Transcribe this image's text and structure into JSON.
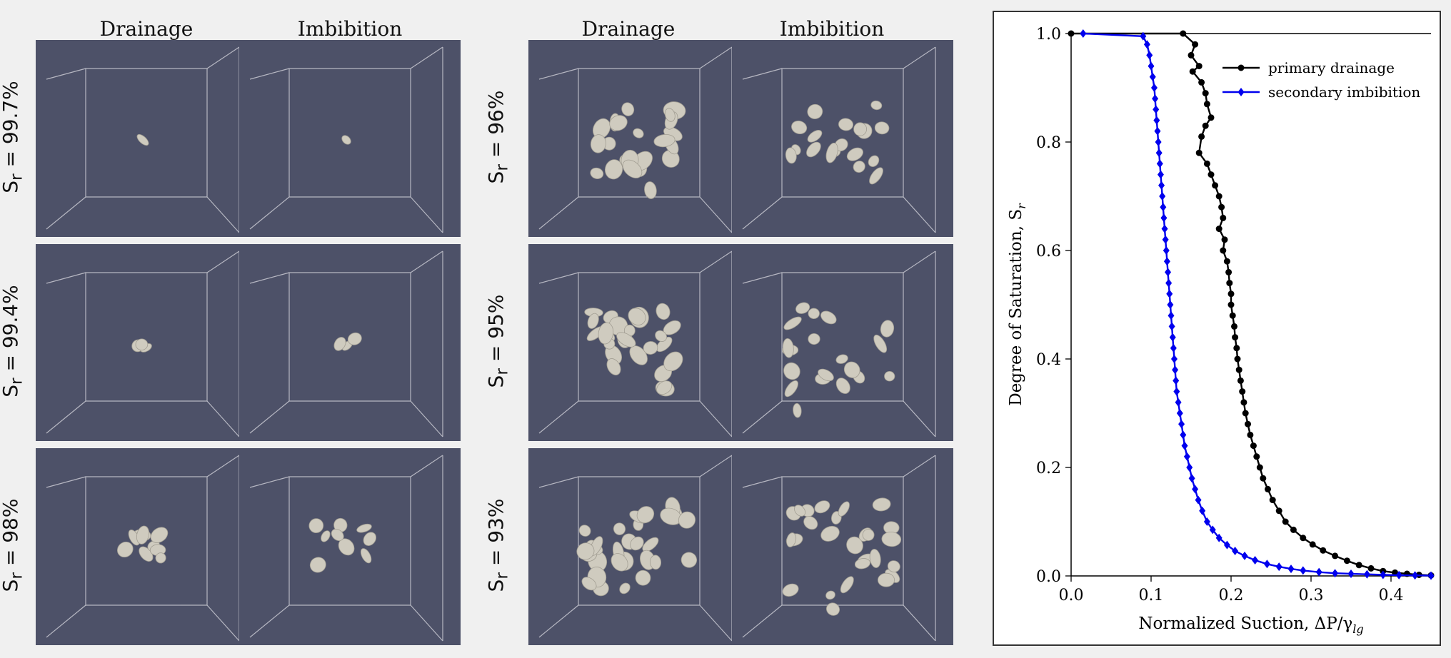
{
  "left_group": {
    "col_titles": [
      "Drainage",
      "Imbibition"
    ],
    "row_labels": [
      "S<sub>r</sub> = 99.7%",
      "S<sub>r</sub> = 99.4%",
      "S<sub>r</sub> = 98%"
    ]
  },
  "right_group": {
    "col_titles": [
      "Drainage",
      "Imbibition"
    ],
    "row_labels": [
      "S<sub>r</sub> = 96%",
      "S<sub>r</sub> = 95%",
      "S<sub>r</sub> = 93%"
    ]
  },
  "chart_data": {
    "type": "line",
    "title": "",
    "xlabel": "Normalized Suction, ΔP/γ",
    "xlabel_sub": "lg",
    "ylabel": "Degree of Saturation, S",
    "ylabel_sub": "r",
    "xlim": [
      0.0,
      0.45
    ],
    "ylim": [
      0.0,
      1.0
    ],
    "x_ticks": [
      "0.0",
      "0.1",
      "0.2",
      "0.3",
      "0.4"
    ],
    "y_ticks": [
      "0.0",
      "0.2",
      "0.4",
      "0.6",
      "0.8",
      "1.0"
    ],
    "legend_position": "top-right",
    "series": [
      {
        "name": "primary drainage",
        "color": "#000000",
        "marker": "circle",
        "points": [
          [
            0.0,
            1.0
          ],
          [
            0.14,
            1.0
          ],
          [
            0.155,
            0.98
          ],
          [
            0.15,
            0.96
          ],
          [
            0.16,
            0.94
          ],
          [
            0.152,
            0.93
          ],
          [
            0.163,
            0.91
          ],
          [
            0.168,
            0.89
          ],
          [
            0.17,
            0.87
          ],
          [
            0.175,
            0.845
          ],
          [
            0.168,
            0.83
          ],
          [
            0.163,
            0.81
          ],
          [
            0.16,
            0.78
          ],
          [
            0.17,
            0.76
          ],
          [
            0.175,
            0.74
          ],
          [
            0.18,
            0.72
          ],
          [
            0.185,
            0.7
          ],
          [
            0.188,
            0.68
          ],
          [
            0.19,
            0.66
          ],
          [
            0.185,
            0.64
          ],
          [
            0.192,
            0.62
          ],
          [
            0.19,
            0.6
          ],
          [
            0.195,
            0.58
          ],
          [
            0.197,
            0.56
          ],
          [
            0.198,
            0.54
          ],
          [
            0.2,
            0.52
          ],
          [
            0.2,
            0.5
          ],
          [
            0.202,
            0.48
          ],
          [
            0.204,
            0.46
          ],
          [
            0.205,
            0.44
          ],
          [
            0.207,
            0.42
          ],
          [
            0.208,
            0.4
          ],
          [
            0.21,
            0.38
          ],
          [
            0.212,
            0.36
          ],
          [
            0.214,
            0.34
          ],
          [
            0.216,
            0.32
          ],
          [
            0.218,
            0.3
          ],
          [
            0.221,
            0.28
          ],
          [
            0.224,
            0.26
          ],
          [
            0.228,
            0.24
          ],
          [
            0.232,
            0.22
          ],
          [
            0.236,
            0.2
          ],
          [
            0.24,
            0.18
          ],
          [
            0.246,
            0.16
          ],
          [
            0.252,
            0.14
          ],
          [
            0.26,
            0.12
          ],
          [
            0.268,
            0.1
          ],
          [
            0.278,
            0.085
          ],
          [
            0.29,
            0.07
          ],
          [
            0.302,
            0.058
          ],
          [
            0.315,
            0.047
          ],
          [
            0.33,
            0.037
          ],
          [
            0.345,
            0.028
          ],
          [
            0.36,
            0.02
          ],
          [
            0.375,
            0.014
          ],
          [
            0.39,
            0.009
          ],
          [
            0.405,
            0.006
          ],
          [
            0.42,
            0.004
          ],
          [
            0.435,
            0.002
          ],
          [
            0.45,
            0.001
          ]
        ]
      },
      {
        "name": "secondary imbibition",
        "color": "#0000ee",
        "marker": "diamond",
        "points": [
          [
            0.015,
            1.0
          ],
          [
            0.09,
            0.995
          ],
          [
            0.095,
            0.98
          ],
          [
            0.098,
            0.96
          ],
          [
            0.1,
            0.94
          ],
          [
            0.102,
            0.92
          ],
          [
            0.104,
            0.9
          ],
          [
            0.105,
            0.88
          ],
          [
            0.106,
            0.86
          ],
          [
            0.107,
            0.84
          ],
          [
            0.108,
            0.82
          ],
          [
            0.109,
            0.8
          ],
          [
            0.11,
            0.78
          ],
          [
            0.111,
            0.76
          ],
          [
            0.112,
            0.74
          ],
          [
            0.113,
            0.72
          ],
          [
            0.114,
            0.7
          ],
          [
            0.115,
            0.68
          ],
          [
            0.116,
            0.66
          ],
          [
            0.117,
            0.64
          ],
          [
            0.118,
            0.62
          ],
          [
            0.119,
            0.6
          ],
          [
            0.12,
            0.58
          ],
          [
            0.121,
            0.56
          ],
          [
            0.122,
            0.54
          ],
          [
            0.123,
            0.52
          ],
          [
            0.124,
            0.5
          ],
          [
            0.125,
            0.48
          ],
          [
            0.126,
            0.46
          ],
          [
            0.127,
            0.44
          ],
          [
            0.128,
            0.42
          ],
          [
            0.129,
            0.4
          ],
          [
            0.13,
            0.38
          ],
          [
            0.131,
            0.36
          ],
          [
            0.132,
            0.34
          ],
          [
            0.134,
            0.32
          ],
          [
            0.136,
            0.3
          ],
          [
            0.138,
            0.28
          ],
          [
            0.14,
            0.26
          ],
          [
            0.142,
            0.24
          ],
          [
            0.145,
            0.22
          ],
          [
            0.148,
            0.2
          ],
          [
            0.151,
            0.18
          ],
          [
            0.155,
            0.16
          ],
          [
            0.159,
            0.14
          ],
          [
            0.164,
            0.12
          ],
          [
            0.17,
            0.1
          ],
          [
            0.177,
            0.085
          ],
          [
            0.185,
            0.07
          ],
          [
            0.195,
            0.057
          ],
          [
            0.205,
            0.046
          ],
          [
            0.217,
            0.037
          ],
          [
            0.23,
            0.029
          ],
          [
            0.245,
            0.022
          ],
          [
            0.26,
            0.017
          ],
          [
            0.275,
            0.013
          ],
          [
            0.29,
            0.01
          ],
          [
            0.31,
            0.007
          ],
          [
            0.33,
            0.005
          ],
          [
            0.35,
            0.004
          ],
          [
            0.37,
            0.003
          ],
          [
            0.39,
            0.002
          ],
          [
            0.41,
            0.0015
          ],
          [
            0.43,
            0.001
          ],
          [
            0.45,
            0.0005
          ]
        ]
      }
    ]
  }
}
